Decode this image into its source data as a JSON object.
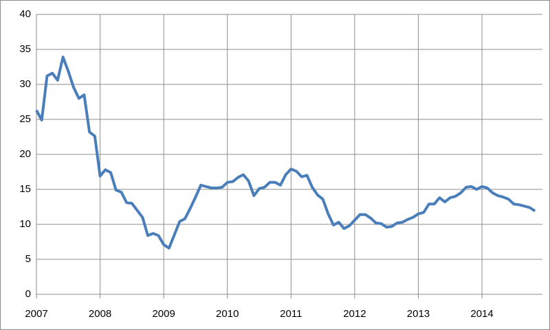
{
  "chart_data": {
    "type": "line",
    "x": [
      2007,
      2007.083,
      2007.167,
      2007.25,
      2007.333,
      2007.417,
      2007.5,
      2007.583,
      2007.667,
      2007.75,
      2007.833,
      2007.917,
      2008,
      2008.083,
      2008.167,
      2008.25,
      2008.333,
      2008.417,
      2008.5,
      2008.583,
      2008.667,
      2008.75,
      2008.833,
      2008.917,
      2009,
      2009.083,
      2009.167,
      2009.25,
      2009.333,
      2009.417,
      2009.5,
      2009.583,
      2009.667,
      2009.75,
      2009.833,
      2009.917,
      2010,
      2010.083,
      2010.167,
      2010.25,
      2010.333,
      2010.417,
      2010.5,
      2010.583,
      2010.667,
      2010.75,
      2010.833,
      2010.917,
      2011,
      2011.083,
      2011.167,
      2011.25,
      2011.333,
      2011.417,
      2011.5,
      2011.583,
      2011.667,
      2011.75,
      2011.833,
      2011.917,
      2012,
      2012.083,
      2012.167,
      2012.25,
      2012.333,
      2012.417,
      2012.5,
      2012.583,
      2012.667,
      2012.75,
      2012.833,
      2012.917,
      2013,
      2013.083,
      2013.167,
      2013.25,
      2013.333,
      2013.417,
      2013.5,
      2013.583,
      2013.667,
      2013.75,
      2013.833,
      2013.917,
      2014,
      2014.083,
      2014.167,
      2014.25,
      2014.333,
      2014.417,
      2014.5,
      2014.583,
      2014.667,
      2014.75,
      2014.833
    ],
    "series": [
      {
        "color": "#4a7ebb",
        "values": [
          26.3,
          24.9,
          31.2,
          31.6,
          30.6,
          33.9,
          31.9,
          29.6,
          28.0,
          28.5,
          23.2,
          22.6,
          16.9,
          17.8,
          17.4,
          14.9,
          14.6,
          13.1,
          13.0,
          12.0,
          11.0,
          8.4,
          8.7,
          8.4,
          7.1,
          6.6,
          8.5,
          10.4,
          10.8,
          12.3,
          13.9,
          15.6,
          15.4,
          15.2,
          15.2,
          15.3,
          16.0,
          16.1,
          16.7,
          17.1,
          16.2,
          14.1,
          15.1,
          15.3,
          16.0,
          16.0,
          15.6,
          17.1,
          17.9,
          17.6,
          16.8,
          17.0,
          15.3,
          14.2,
          13.6,
          11.5,
          9.9,
          10.3,
          9.4,
          9.8,
          10.6,
          11.4,
          11.4,
          10.9,
          10.2,
          10.1,
          9.6,
          9.7,
          10.2,
          10.3,
          10.7,
          11.0,
          11.5,
          11.7,
          12.9,
          12.9,
          13.8,
          13.2,
          13.8,
          14.0,
          14.5,
          15.3,
          15.4,
          15.0,
          15.4,
          15.2,
          14.5,
          14.1,
          13.9,
          13.6,
          12.9,
          12.8,
          12.6,
          12.4,
          11.9
        ]
      }
    ],
    "xlim": [
      2007,
      2014.95
    ],
    "xticks": [
      2007,
      2008,
      2009,
      2010,
      2011,
      2012,
      2013,
      2014
    ],
    "ylim": [
      0,
      40
    ],
    "yticks": [
      0,
      5,
      10,
      15,
      20,
      25,
      30,
      35,
      40
    ],
    "grid": true
  }
}
